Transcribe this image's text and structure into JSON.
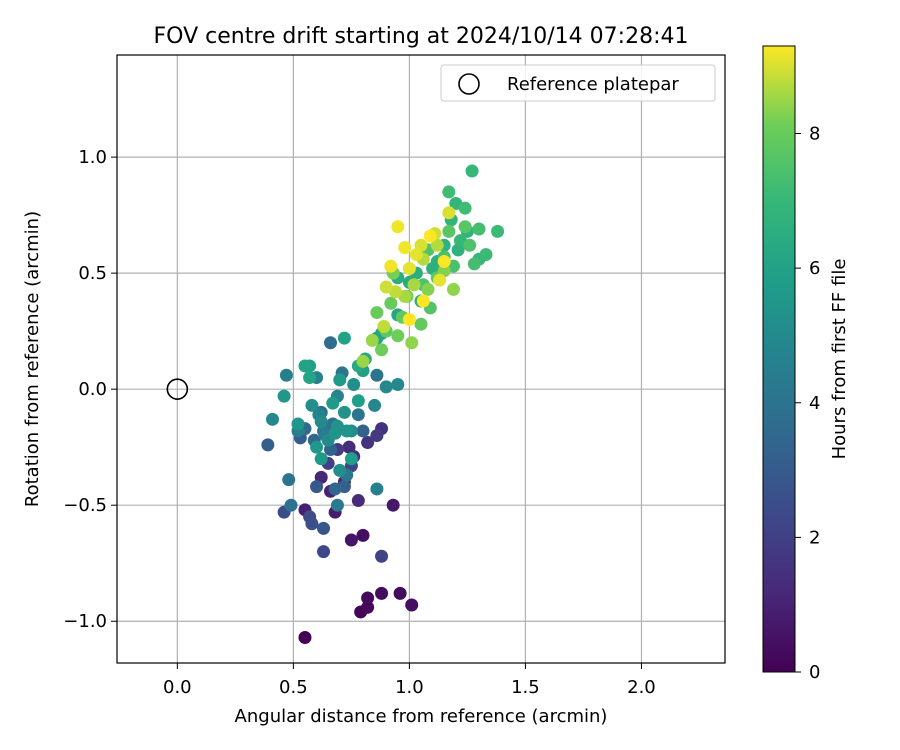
{
  "chart_data": {
    "type": "scatter",
    "title": "FOV centre drift starting at 2024/10/14 07:28:41",
    "xlabel": "Angular distance from reference (arcmin)",
    "ylabel": "Rotation from reference (arcmin)",
    "xlim": [
      -0.26,
      2.36
    ],
    "ylim": [
      -1.18,
      1.44
    ],
    "xticks": [
      0.0,
      0.5,
      1.0,
      1.5,
      2.0
    ],
    "xtick_labels": [
      "0.0",
      "0.5",
      "1.0",
      "1.5",
      "2.0"
    ],
    "yticks": [
      -1.0,
      -0.5,
      0.0,
      0.5,
      1.0
    ],
    "ytick_labels": [
      "−1.0",
      "−0.5",
      "0.0",
      "0.5",
      "1.0"
    ],
    "grid": true,
    "legend": {
      "placement": "upper-right",
      "entries": [
        "Reference platepar"
      ]
    },
    "reference_point": {
      "x": 0.0,
      "y": 0.0
    },
    "colorbar": {
      "label": "Hours from first FF file",
      "colormap": "viridis",
      "min": 0,
      "max": 9.3,
      "ticks": [
        0,
        2,
        4,
        6,
        8
      ],
      "tick_labels": [
        "0",
        "2",
        "4",
        "6",
        "8"
      ]
    },
    "series": [
      {
        "points_xyc": [
          [
            0.55,
            -1.07,
            0.0
          ],
          [
            0.79,
            -0.96,
            0.1
          ],
          [
            0.82,
            -0.94,
            0.2
          ],
          [
            0.82,
            -0.9,
            0.2
          ],
          [
            0.88,
            -0.88,
            0.3
          ],
          [
            0.96,
            -0.88,
            0.3
          ],
          [
            1.01,
            -0.93,
            0.4
          ],
          [
            0.8,
            -0.63,
            0.4
          ],
          [
            0.75,
            -0.65,
            0.6
          ],
          [
            0.93,
            -0.5,
            0.7
          ],
          [
            0.68,
            -0.53,
            0.8
          ],
          [
            0.55,
            -0.52,
            0.9
          ],
          [
            0.66,
            -0.44,
            1.0
          ],
          [
            0.62,
            -0.38,
            1.1
          ],
          [
            0.72,
            -0.4,
            1.2
          ],
          [
            0.78,
            -0.48,
            1.3
          ],
          [
            0.74,
            -0.25,
            1.3
          ],
          [
            0.76,
            -0.29,
            1.4
          ],
          [
            0.88,
            -0.17,
            1.5
          ],
          [
            0.82,
            -0.23,
            1.6
          ],
          [
            0.86,
            -0.2,
            1.8
          ],
          [
            0.69,
            -0.26,
            1.9
          ],
          [
            0.65,
            -0.32,
            2.0
          ],
          [
            0.75,
            -0.33,
            2.1
          ],
          [
            0.88,
            -0.72,
            2.2
          ],
          [
            0.63,
            -0.7,
            2.3
          ],
          [
            0.57,
            -0.55,
            2.4
          ],
          [
            0.46,
            -0.53,
            2.5
          ],
          [
            0.58,
            -0.58,
            2.6
          ],
          [
            0.63,
            -0.6,
            2.8
          ],
          [
            0.6,
            -0.42,
            2.9
          ],
          [
            0.53,
            -0.21,
            3.0
          ],
          [
            0.39,
            -0.24,
            3.1
          ],
          [
            0.72,
            -0.42,
            3.2
          ],
          [
            0.8,
            -0.18,
            3.3
          ],
          [
            0.66,
            -0.26,
            3.3
          ],
          [
            0.68,
            -0.43,
            3.4
          ],
          [
            0.59,
            -0.22,
            3.5
          ],
          [
            0.55,
            -0.17,
            3.6
          ],
          [
            0.66,
            0.2,
            3.7
          ],
          [
            0.62,
            -0.1,
            3.8
          ],
          [
            0.67,
            -0.15,
            3.9
          ],
          [
            0.49,
            -0.5,
            3.9
          ],
          [
            0.48,
            -0.39,
            4.0
          ],
          [
            0.86,
            0.06,
            4.0
          ],
          [
            0.71,
            0.07,
            4.1
          ],
          [
            0.78,
            -0.11,
            4.1
          ],
          [
            0.63,
            -0.18,
            4.2
          ],
          [
            0.73,
            -0.37,
            4.2
          ],
          [
            0.69,
            -0.5,
            4.3
          ],
          [
            0.64,
            -0.2,
            4.4
          ],
          [
            0.52,
            -0.18,
            4.5
          ],
          [
            0.47,
            0.06,
            4.5
          ],
          [
            0.61,
            -0.11,
            4.6
          ],
          [
            0.86,
            -0.43,
            4.6
          ],
          [
            0.6,
            0.05,
            4.7
          ],
          [
            0.69,
            -0.03,
            4.7
          ],
          [
            0.85,
            -0.07,
            4.8
          ],
          [
            0.41,
            -0.13,
            4.8
          ],
          [
            0.9,
            0.01,
            4.9
          ],
          [
            0.95,
            0.02,
            4.9
          ],
          [
            0.62,
            -0.14,
            5.0
          ],
          [
            0.65,
            -0.22,
            5.0
          ],
          [
            0.75,
            -0.18,
            5.1
          ],
          [
            0.7,
            -0.35,
            5.1
          ],
          [
            0.58,
            -0.07,
            5.2
          ],
          [
            0.76,
            0.02,
            5.2
          ],
          [
            0.69,
            -0.16,
            5.3
          ],
          [
            0.72,
            -0.1,
            5.3
          ],
          [
            0.68,
            -0.19,
            5.4
          ],
          [
            0.73,
            -0.18,
            5.4
          ],
          [
            0.46,
            -0.03,
            5.5
          ],
          [
            0.52,
            -0.15,
            5.5
          ],
          [
            0.6,
            -0.25,
            5.6
          ],
          [
            0.62,
            -0.3,
            5.6
          ],
          [
            0.67,
            -0.06,
            5.7
          ],
          [
            0.7,
            0.04,
            5.7
          ],
          [
            0.78,
            -0.05,
            5.8
          ],
          [
            0.75,
            -0.3,
            5.8
          ],
          [
            0.57,
            0.1,
            5.9
          ],
          [
            0.8,
            0.08,
            5.9
          ],
          [
            0.86,
            0.22,
            6.0
          ],
          [
            0.72,
            0.22,
            6.0
          ],
          [
            0.57,
            0.05,
            6.1
          ],
          [
            0.55,
            0.1,
            6.1
          ],
          [
            0.88,
            0.24,
            6.2
          ],
          [
            0.95,
            0.32,
            6.2
          ],
          [
            0.78,
            0.1,
            6.3
          ],
          [
            0.81,
            0.13,
            6.3
          ],
          [
            1.05,
            0.38,
            6.4
          ],
          [
            1.0,
            0.46,
            6.4
          ],
          [
            0.95,
            0.48,
            6.5
          ],
          [
            1.03,
            0.5,
            6.5
          ],
          [
            1.1,
            0.52,
            6.6
          ],
          [
            1.12,
            0.55,
            6.6
          ],
          [
            1.15,
            0.62,
            6.7
          ],
          [
            1.21,
            0.6,
            6.7
          ],
          [
            1.18,
            0.73,
            6.8
          ],
          [
            1.25,
            0.68,
            6.8
          ],
          [
            1.3,
            0.56,
            6.9
          ],
          [
            1.2,
            0.8,
            6.9
          ],
          [
            1.22,
            0.64,
            7.0
          ],
          [
            1.27,
            0.94,
            7.0
          ],
          [
            1.38,
            0.68,
            7.1
          ],
          [
            1.33,
            0.58,
            7.1
          ],
          [
            1.17,
            0.85,
            7.2
          ],
          [
            1.24,
            0.78,
            7.2
          ],
          [
            1.3,
            0.69,
            7.3
          ],
          [
            1.28,
            0.54,
            7.3
          ],
          [
            1.19,
            0.53,
            7.4
          ],
          [
            1.15,
            0.57,
            7.4
          ],
          [
            1.26,
            0.62,
            7.5
          ],
          [
            1.06,
            0.45,
            7.5
          ],
          [
            1.09,
            0.35,
            7.6
          ],
          [
            1.08,
            0.6,
            7.6
          ],
          [
            1.24,
            0.7,
            7.7
          ],
          [
            1.17,
            0.68,
            7.7
          ],
          [
            1.12,
            0.48,
            7.8
          ],
          [
            0.9,
            0.25,
            7.8
          ],
          [
            1.05,
            0.28,
            7.9
          ],
          [
            0.97,
            0.31,
            7.9
          ],
          [
            0.92,
            0.37,
            8.0
          ],
          [
            0.86,
            0.33,
            8.0
          ],
          [
            0.88,
            0.17,
            8.1
          ],
          [
            0.95,
            0.23,
            8.1
          ],
          [
            0.99,
            0.4,
            8.2
          ],
          [
            0.93,
            0.5,
            8.2
          ],
          [
            1.08,
            0.43,
            8.3
          ],
          [
            1.15,
            0.51,
            8.3
          ],
          [
            1.19,
            0.43,
            8.4
          ],
          [
            1.01,
            0.2,
            8.4
          ],
          [
            0.84,
            0.21,
            8.5
          ],
          [
            0.8,
            0.12,
            8.5
          ],
          [
            1.02,
            0.45,
            8.6
          ],
          [
            0.98,
            0.4,
            8.6
          ],
          [
            1.06,
            0.56,
            8.7
          ],
          [
            1.12,
            0.62,
            8.7
          ],
          [
            0.94,
            0.42,
            8.8
          ],
          [
            0.89,
            0.27,
            8.8
          ],
          [
            0.9,
            0.44,
            8.9
          ],
          [
            1.11,
            0.67,
            8.9
          ],
          [
            1.17,
            0.76,
            9.0
          ],
          [
            1.05,
            0.62,
            9.0
          ],
          [
            1.13,
            0.47,
            9.1
          ],
          [
            1.03,
            0.58,
            9.1
          ],
          [
            0.98,
            0.61,
            9.2
          ],
          [
            0.95,
            0.7,
            9.2
          ],
          [
            1.09,
            0.66,
            9.3
          ],
          [
            1.15,
            0.55,
            9.3
          ],
          [
            1.0,
            0.3,
            9.3
          ],
          [
            1.06,
            0.38,
            9.3
          ],
          [
            0.92,
            0.53,
            9.2
          ],
          [
            1.0,
            0.52,
            9.1
          ]
        ]
      }
    ]
  }
}
